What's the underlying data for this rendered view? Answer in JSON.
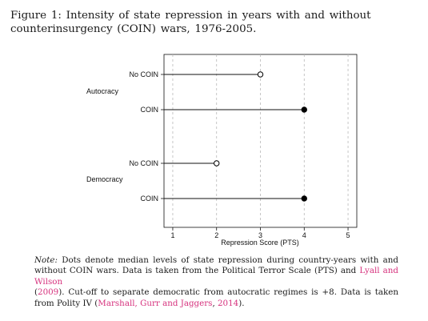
{
  "caption": {
    "label": "Figure 1:",
    "text": "Intensity of state repression in years with and without counterinsurgency (COIN) wars, 1976-2005."
  },
  "chart_data": {
    "type": "dot",
    "xlabel": "Repression Score (PTS)",
    "xlim": [
      0.8,
      5.2
    ],
    "xticks": [
      1,
      2,
      3,
      4,
      5
    ],
    "grid": "vertical dashed",
    "groups": [
      {
        "name": "Autocracy",
        "rows": [
          {
            "label": "No COIN",
            "value": 3,
            "marker": "open"
          },
          {
            "label": "COIN",
            "value": 4,
            "marker": "filled"
          }
        ]
      },
      {
        "name": "Democracy",
        "rows": [
          {
            "label": "No COIN",
            "value": 2,
            "marker": "open"
          },
          {
            "label": "COIN",
            "value": 4,
            "marker": "filled"
          }
        ]
      }
    ]
  },
  "note": {
    "lead": "Note:",
    "t1": "Dots denote median levels of state repression during country-years with and without COIN wars.  Data is taken from the Political Terror Scale (PTS) and",
    "ref1_name": "Lyall and Wilson",
    "ref1_open": "(",
    "ref1_year": "2009",
    "t2": ").  Cut-off to separate democratic from autocratic regimes is +8.  Data is taken from Polity IV (",
    "ref2": "Marshall, Gurr and Jaggers",
    "t3": ", ",
    "ref2_year": "2014",
    "t4": ")."
  }
}
